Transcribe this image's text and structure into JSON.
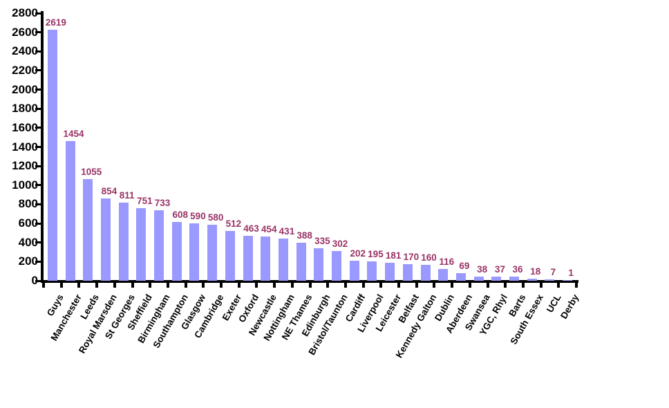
{
  "chart_data": {
    "type": "bar",
    "title": "",
    "xlabel": "",
    "ylabel": "",
    "categories": [
      "Guys",
      "Manchester",
      "Leeds",
      "Royal Marsden",
      "St Georges",
      "Sheffield",
      "Birmingham",
      "Southampton",
      "Glasgow",
      "Cambridge",
      "Exeter",
      "Oxford",
      "Newcastle",
      "Nottingham",
      "NE Thames",
      "Edinburgh",
      "Bristol/Taunton",
      "Cardiff",
      "Liverpool",
      "Leicester",
      "Belfast",
      "Kennedy Galton",
      "Dublin",
      "Aberdeen",
      "Swansea",
      "YGC, Rhyl",
      "Barts",
      "South Essex",
      "UCL",
      "Derby"
    ],
    "values": [
      2619,
      1454,
      1055,
      854,
      811,
      751,
      733,
      608,
      590,
      580,
      512,
      463,
      454,
      431,
      388,
      335,
      302,
      202,
      195,
      181,
      170,
      160,
      116,
      69,
      38,
      37,
      36,
      18,
      7,
      1
    ],
    "ylim": [
      0,
      2800
    ],
    "ytick_step": 200,
    "grid": false,
    "legend": false,
    "data_labels": true,
    "colors": {
      "bar_fill": "#9999FF",
      "value_label": "#993366",
      "axis": "#000000",
      "tick_label": "#000000",
      "background": "#FFFFFF"
    }
  }
}
